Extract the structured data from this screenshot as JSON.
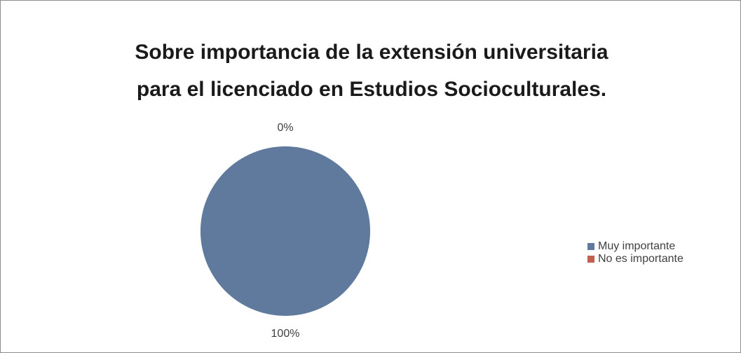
{
  "chart_data": {
    "type": "pie",
    "title": [
      "Sobre  importancia de la extensión universitaria",
      "para el licenciado en Estudios Socioculturales."
    ],
    "categories": [
      "Muy importante",
      "No es importante"
    ],
    "values": [
      100,
      0
    ],
    "value_labels": [
      "100%",
      "0%"
    ],
    "colors": [
      "#5f7a9c",
      "#c0604d"
    ],
    "legend": "right"
  }
}
